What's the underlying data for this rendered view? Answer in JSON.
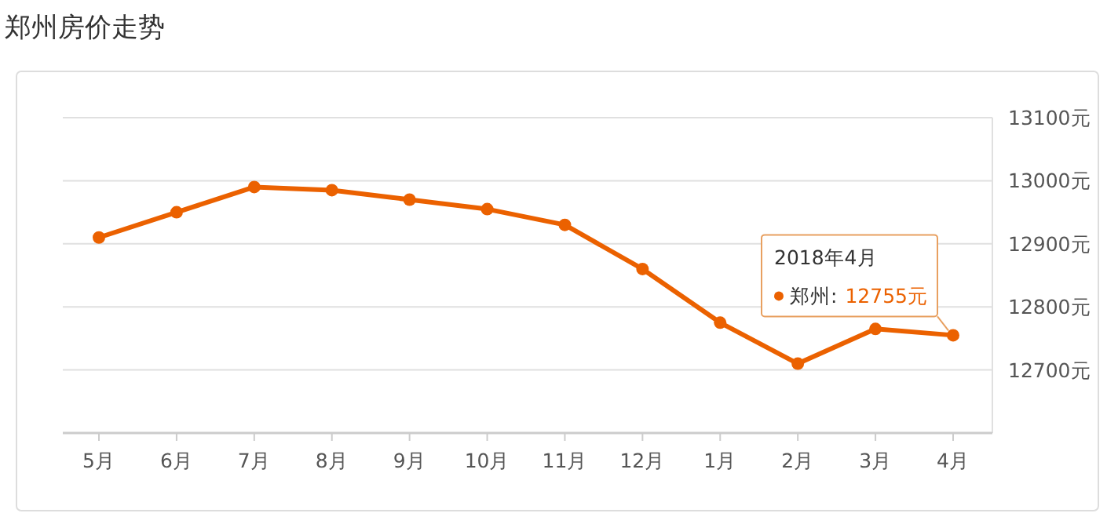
{
  "chart_data": {
    "type": "line",
    "title": "郑州房价走势",
    "categories": [
      "5月",
      "6月",
      "7月",
      "8月",
      "9月",
      "10月",
      "11月",
      "12月",
      "1月",
      "2月",
      "3月",
      "4月"
    ],
    "series": [
      {
        "name": "郑州:",
        "color": "#eb6100",
        "values": [
          12910,
          12950,
          12990,
          12985,
          12970,
          12955,
          12930,
          12860,
          12775,
          12710,
          12765,
          12755
        ],
        "value_labels": [
          null,
          null,
          null,
          null,
          null,
          null,
          null,
          null,
          null,
          null,
          null,
          "12755元"
        ]
      }
    ],
    "ylim": [
      12600,
      13100
    ],
    "yticks": [
      {
        "value": 12700,
        "label": "12700元"
      },
      {
        "value": 12800,
        "label": "12800元"
      },
      {
        "value": 12900,
        "label": "12900元"
      },
      {
        "value": 13000,
        "label": "13000元"
      },
      {
        "value": 13100,
        "label": "13100元"
      }
    ],
    "grid": "y",
    "marker": "circle",
    "line_style": "solid",
    "annotations": [
      "2018年4月"
    ]
  }
}
